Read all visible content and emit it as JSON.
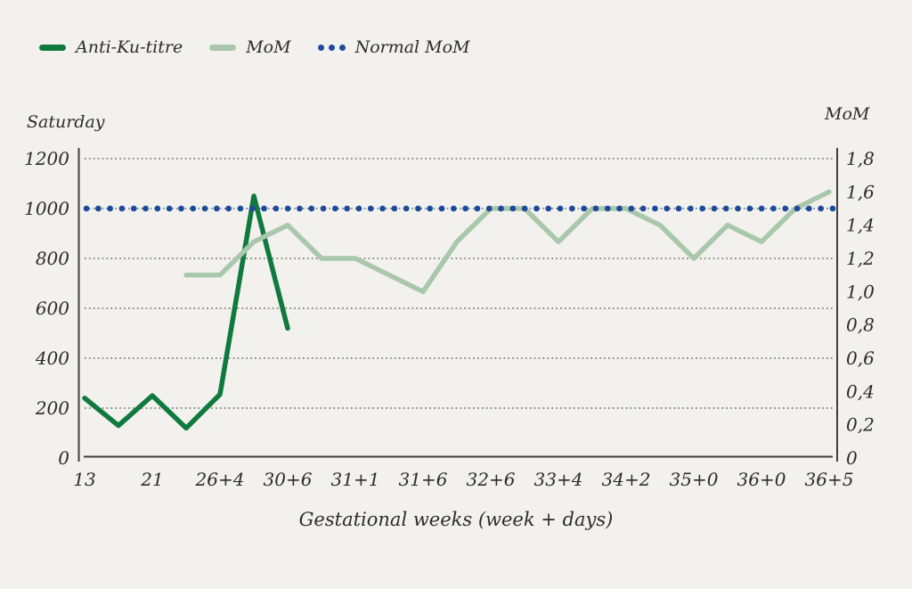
{
  "colors": {
    "background": "#f2f1ee",
    "anti_ku_green": "#107a3e",
    "mom_green": "#a9c7ab",
    "normal_mom_blue": "#1c4b9c",
    "grid_gray": "#8d8c88",
    "axis_dark": "#403f3d",
    "text": "#2e2c29"
  },
  "legend": {
    "items": [
      {
        "label": "Anti-Ku-titre",
        "marker": "line",
        "color": "#107a3e"
      },
      {
        "label": "MoM",
        "marker": "line",
        "color": "#a9c7ab"
      },
      {
        "label": "Normal MoM",
        "marker": "dots",
        "color": "#1c4b9c"
      }
    ]
  },
  "chart_data": {
    "type": "line",
    "title": "",
    "x_axis": {
      "label": "Gestational weeks (week + days)",
      "tick_labels": [
        "13",
        "21",
        "26+4",
        "30+6",
        "31+1",
        "31+6",
        "32+6",
        "33+4",
        "34+2",
        "35+0",
        "36+0",
        "36+5"
      ],
      "note": "tick labels sit at even half-step indices 0,2,4,...,22; data points also occur at odd (unlabeled) midpoints"
    },
    "left_axis": {
      "title": "Saturday",
      "min": 0,
      "max": 1200,
      "tick_values": [
        0,
        200,
        400,
        600,
        800,
        1000,
        1200
      ],
      "tick_labels": [
        "0",
        "200",
        "400",
        "600",
        "800",
        "1000",
        "1200"
      ]
    },
    "right_axis": {
      "title": "MoM",
      "min": 0,
      "max": 1.8,
      "tick_values": [
        0,
        0.2,
        0.4,
        0.6,
        0.8,
        1.0,
        1.2,
        1.4,
        1.6,
        1.8
      ],
      "tick_labels": [
        "0",
        "0,2",
        "0,4",
        "0,6",
        "0,8",
        "1,0",
        "1,2",
        "1,4",
        "1,6",
        "1,8"
      ]
    },
    "grid": true,
    "legend_position": "top-left",
    "series": [
      {
        "name": "Anti-Ku-titre",
        "axis": "left",
        "style": "solid",
        "color": "#107a3e",
        "x_idx": [
          0,
          1,
          2,
          3,
          4,
          5,
          6
        ],
        "values": [
          240,
          130,
          250,
          120,
          255,
          1050,
          520
        ]
      },
      {
        "name": "MoM",
        "axis": "right",
        "style": "solid",
        "color": "#a9c7ab",
        "x_idx": [
          3,
          4,
          5,
          6,
          7,
          8,
          9,
          10,
          11,
          12,
          13,
          14,
          15,
          16,
          17,
          18,
          19,
          20,
          21,
          22
        ],
        "values": [
          1.1,
          1.1,
          1.3,
          1.4,
          1.2,
          1.2,
          1.1,
          1.0,
          1.3,
          1.5,
          1.5,
          1.3,
          1.5,
          1.5,
          1.4,
          1.2,
          1.4,
          1.3,
          1.5,
          1.6
        ]
      },
      {
        "name": "Normal MoM",
        "axis": "right",
        "style": "dotted",
        "color": "#1c4b9c",
        "constant": 1.5
      }
    ]
  }
}
